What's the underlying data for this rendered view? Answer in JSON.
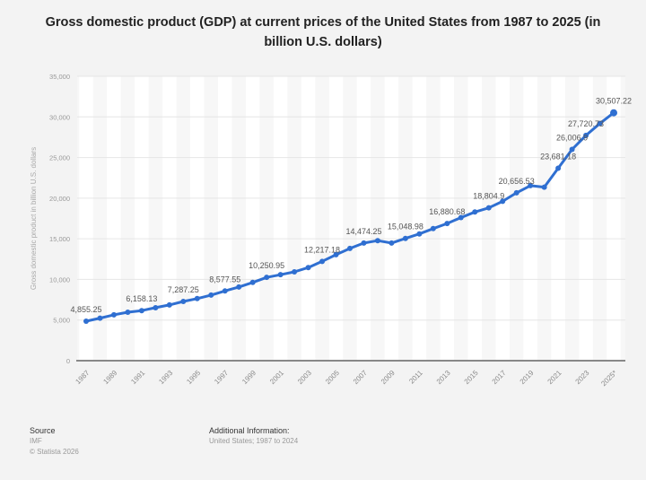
{
  "chart_data": {
    "type": "line",
    "title": "Gross domestic product (GDP) at current prices of the United States from 1987 to 2025 (in billion U.S. dollars)",
    "xlabel": "",
    "ylabel": "Gross domestic product in billion U.S. dollars",
    "ylim": [
      0,
      35000
    ],
    "yticks": [
      "0",
      "5,000",
      "10,000",
      "15,000",
      "20,000",
      "25,000",
      "30,000",
      "35,000"
    ],
    "xtick_labels": [
      "1987",
      "1989",
      "1991",
      "1993",
      "1995",
      "1997",
      "1999",
      "2001",
      "2003",
      "2005",
      "2007",
      "2009",
      "2011",
      "2013",
      "2015",
      "2017",
      "2019",
      "2021",
      "2023",
      "2025*"
    ],
    "grid": true,
    "color": "#2f6fd1",
    "x": [
      1987,
      1988,
      1989,
      1990,
      1991,
      1992,
      1993,
      1994,
      1995,
      1996,
      1997,
      1998,
      1999,
      2000,
      2001,
      2002,
      2003,
      2004,
      2005,
      2006,
      2007,
      2008,
      2009,
      2010,
      2011,
      2012,
      2013,
      2014,
      2015,
      2016,
      2017,
      2018,
      2019,
      2020,
      2021,
      2022,
      2023,
      2024,
      2025
    ],
    "values": [
      4855.25,
      5236.44,
      5641.58,
      5963.13,
      6158.13,
      6520.33,
      6858.55,
      7287.25,
      7639.75,
      8073.13,
      8577.55,
      9062.83,
      9631.18,
      10250.95,
      10581.93,
      10929.1,
      11456.45,
      12217.18,
      13039.2,
      13815.58,
      14474.25,
      14769.85,
      14478.05,
      15048.98,
      15599.73,
      16253.95,
      16880.68,
      17608.13,
      18295.0,
      18804.9,
      19612.1,
      20656.53,
      21539.98,
      21354.1,
      23681.18,
      26006.9,
      27720.73,
      29184.9,
      30507.22
    ],
    "data_labels": [
      {
        "year": 1987,
        "text": "4,855.25"
      },
      {
        "year": 1991,
        "text": "6,158.13"
      },
      {
        "year": 1994,
        "text": "7,287.25"
      },
      {
        "year": 1997,
        "text": "8,577.55"
      },
      {
        "year": 2000,
        "text": "10,250.95"
      },
      {
        "year": 2004,
        "text": "12,217.18"
      },
      {
        "year": 2007,
        "text": "14,474.25"
      },
      {
        "year": 2010,
        "text": "15,048.98"
      },
      {
        "year": 2013,
        "text": "16,880.68"
      },
      {
        "year": 2016,
        "text": "18,804.9"
      },
      {
        "year": 2018,
        "text": "20,656.53"
      },
      {
        "year": 2021,
        "text": "23,681.18"
      },
      {
        "year": 2022,
        "text": "26,006.9"
      },
      {
        "year": 2023,
        "text": "27,720.73"
      },
      {
        "year": 2025,
        "text": "30,507.22"
      }
    ]
  },
  "footer": {
    "source_heading": "Source",
    "source": "IMF",
    "copyright": "© Statista 2026",
    "additional_heading": "Additional Information:",
    "additional": "United States; 1987 to 2024"
  }
}
